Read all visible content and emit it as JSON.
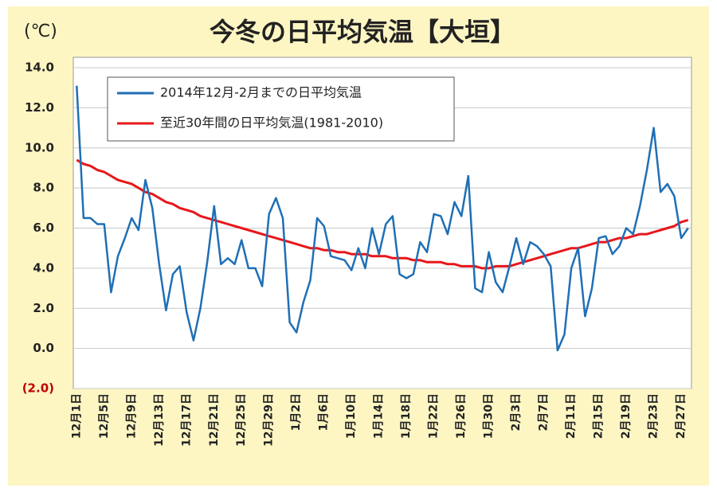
{
  "chart_data": {
    "type": "line",
    "title": "今冬の日平均気温【大垣】",
    "unit": "(℃)",
    "categories": [
      "12月1日",
      null,
      null,
      null,
      "12月5日",
      null,
      null,
      null,
      "12月9日",
      null,
      null,
      null,
      "12月13日",
      null,
      null,
      null,
      "12月17日",
      null,
      null,
      null,
      "12月21日",
      null,
      null,
      null,
      "12月25日",
      null,
      null,
      null,
      "12月29日",
      null,
      null,
      null,
      "1月2日",
      null,
      null,
      null,
      "1月6日",
      null,
      null,
      null,
      "1月10日",
      null,
      null,
      null,
      "1月14日",
      null,
      null,
      null,
      "1月18日",
      null,
      null,
      null,
      "1月22日",
      null,
      null,
      null,
      "1月26日",
      null,
      null,
      null,
      "1月30日",
      null,
      null,
      null,
      "2月3日",
      null,
      null,
      null,
      "2月7日",
      null,
      null,
      null,
      "2月11日",
      null,
      null,
      null,
      "2月15日",
      null,
      null,
      null,
      "2月19日",
      null,
      null,
      null,
      "2月23日",
      null,
      null,
      null,
      "2月27日",
      null
    ],
    "series": [
      {
        "name": "2014年12月-2月までの日平均気温",
        "color": "#1f6fb5",
        "values": [
          13.1,
          6.5,
          6.5,
          6.2,
          6.2,
          2.8,
          4.6,
          5.5,
          6.5,
          5.9,
          8.4,
          7.0,
          4.2,
          1.9,
          3.7,
          4.1,
          1.8,
          0.4,
          2.0,
          4.3,
          7.1,
          4.2,
          4.5,
          4.2,
          5.4,
          4.0,
          4.0,
          3.1,
          6.7,
          7.5,
          6.5,
          1.3,
          0.8,
          2.3,
          3.4,
          6.5,
          6.1,
          4.6,
          4.5,
          4.4,
          3.9,
          5.0,
          4.0,
          6.0,
          4.7,
          6.2,
          6.6,
          3.7,
          3.5,
          3.7,
          5.3,
          4.8,
          6.7,
          6.6,
          5.7,
          7.3,
          6.6,
          8.6,
          3.0,
          2.8,
          4.8,
          3.3,
          2.8,
          4.1,
          5.5,
          4.2,
          5.3,
          5.1,
          4.7,
          4.1,
          -0.1,
          0.7,
          4.0,
          5.0,
          1.6,
          3.0,
          5.5,
          5.6,
          4.7,
          5.1,
          6.0,
          5.7,
          7.1,
          8.9,
          11.0,
          7.8,
          8.2,
          7.6,
          5.5,
          6.0
        ]
      },
      {
        "name": "至近30年間の日平均気温(1981-2010)",
        "color": "#e8171b",
        "values": [
          9.4,
          9.2,
          9.1,
          8.9,
          8.8,
          8.6,
          8.4,
          8.3,
          8.2,
          8.0,
          7.8,
          7.7,
          7.5,
          7.3,
          7.2,
          7.0,
          6.9,
          6.8,
          6.6,
          6.5,
          6.4,
          6.3,
          6.2,
          6.1,
          6.0,
          5.9,
          5.8,
          5.7,
          5.6,
          5.5,
          5.4,
          5.3,
          5.2,
          5.1,
          5.0,
          5.0,
          4.9,
          4.9,
          4.8,
          4.8,
          4.7,
          4.7,
          4.7,
          4.6,
          4.6,
          4.6,
          4.5,
          4.5,
          4.5,
          4.4,
          4.4,
          4.3,
          4.3,
          4.3,
          4.2,
          4.2,
          4.1,
          4.1,
          4.1,
          4.0,
          4.0,
          4.1,
          4.1,
          4.1,
          4.2,
          4.3,
          4.4,
          4.5,
          4.6,
          4.7,
          4.8,
          4.9,
          5.0,
          5.0,
          5.1,
          5.2,
          5.3,
          5.3,
          5.4,
          5.5,
          5.5,
          5.6,
          5.7,
          5.7,
          5.8,
          5.9,
          6.0,
          6.1,
          6.3,
          6.4
        ]
      }
    ],
    "ylim": [
      -2,
      14
    ],
    "yticks": [
      {
        "value": -2,
        "label": "(2.0)"
      },
      {
        "value": 0,
        "label": "0.0"
      },
      {
        "value": 2,
        "label": "2.0"
      },
      {
        "value": 4,
        "label": "4.0"
      },
      {
        "value": 6,
        "label": "6.0"
      },
      {
        "value": 8,
        "label": "8.0"
      },
      {
        "value": 10,
        "label": "10.0"
      },
      {
        "value": 12,
        "label": "12.0"
      },
      {
        "value": 14,
        "label": "14.0"
      }
    ],
    "negative_tick_color": "#c00000",
    "grid": true,
    "legend": "upper left",
    "background": "#fdf6c3"
  }
}
